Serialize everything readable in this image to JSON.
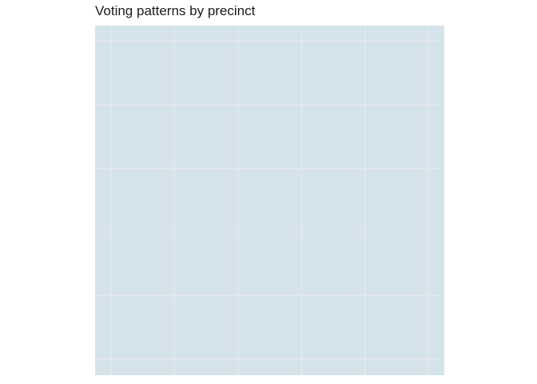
{
  "title": "Voting patterns by precinct",
  "colors": {
    "panel_background": "#d5e3ea",
    "grid_line": "#e6e8ec"
  },
  "map": {
    "grid": true,
    "regions": []
  }
}
